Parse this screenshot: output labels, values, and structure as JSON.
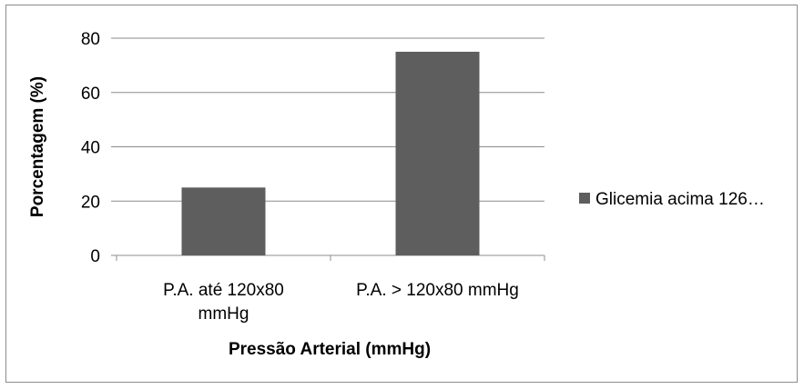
{
  "chart_data": {
    "type": "bar",
    "categories": [
      [
        "P.A. até 120x80",
        "mmHg"
      ],
      [
        "P.A. > 120x80 mmHg"
      ]
    ],
    "series": [
      {
        "name": "Glicemia acima 126…",
        "values": [
          25,
          75
        ],
        "color": "#5e5e5e"
      }
    ],
    "xlabel": "Pressão Arterial (mmHg)",
    "ylabel": "Porcentagem (%)",
    "ylim": [
      0,
      80
    ],
    "yticks": [
      0,
      20,
      40,
      60,
      80
    ],
    "grid": true,
    "legend": "right"
  }
}
